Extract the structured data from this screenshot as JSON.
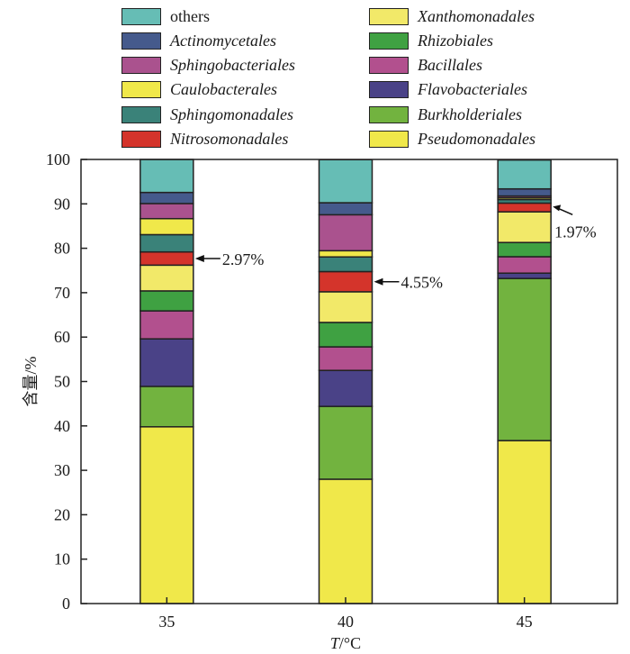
{
  "chart_data": {
    "type": "bar",
    "stacked": true,
    "title": "",
    "xlabel_italic": "T",
    "xlabel_rest": "/°C",
    "ylabel": "含量/%",
    "ylim": [
      0,
      100
    ],
    "yticks": [
      0,
      10,
      20,
      30,
      40,
      50,
      60,
      70,
      80,
      90,
      100
    ],
    "categories": [
      "35",
      "40",
      "45"
    ],
    "legend_position": "top",
    "series": [
      {
        "name": "Pseudomonadales",
        "color": "#F0E84A",
        "italic": true,
        "values": [
          39.8,
          28.0,
          36.7
        ]
      },
      {
        "name": "Burkholderiales",
        "color": "#72B33F",
        "italic": true,
        "values": [
          9.1,
          16.4,
          36.5
        ]
      },
      {
        "name": "Flavobacteriales",
        "color": "#4A4287",
        "italic": true,
        "values": [
          10.7,
          8.1,
          1.2
        ]
      },
      {
        "name": "Bacillales",
        "color": "#B2508E",
        "italic": true,
        "values": [
          6.3,
          5.3,
          3.7
        ]
      },
      {
        "name": "Rhizobiales",
        "color": "#3FA142",
        "italic": true,
        "values": [
          4.5,
          5.5,
          3.2
        ]
      },
      {
        "name": "Xanthomonadales",
        "color": "#F2E969",
        "italic": true,
        "values": [
          5.8,
          6.9,
          6.9
        ]
      },
      {
        "name": "Nitrosomonadales",
        "color": "#D4342B",
        "italic": true,
        "values": [
          2.97,
          4.55,
          1.97
        ]
      },
      {
        "name": "Sphingomonadales",
        "color": "#3A8279",
        "italic": true,
        "values": [
          3.9,
          3.3,
          0.8
        ]
      },
      {
        "name": "Caulobacterales",
        "color": "#F0E84A",
        "italic": true,
        "values": [
          3.6,
          1.4,
          0.4
        ]
      },
      {
        "name": "Sphingobacteriales",
        "color": "#AA528E",
        "italic": true,
        "values": [
          3.4,
          8.1,
          0.4
        ]
      },
      {
        "name": "Actinomycetales",
        "color": "#455A8C",
        "italic": true,
        "values": [
          2.5,
          2.7,
          1.6
        ]
      },
      {
        "name": "others",
        "color": "#66BDB5",
        "italic": false,
        "values": [
          7.5,
          9.7,
          6.5
        ]
      }
    ],
    "legend_order_left": [
      "others",
      "Actinomycetales",
      "Sphingobacteriales",
      "Caulobacterales",
      "Sphingomonadales",
      "Nitrosomonadales"
    ],
    "legend_order_right": [
      "Xanthomonadales",
      "Rhizobiales",
      "Bacillales",
      "Flavobacteriales",
      "Burkholderiales",
      "Pseudomonadales"
    ],
    "annotations": [
      {
        "text": "2.97%",
        "category": "35",
        "series": "Nitrosomonadales"
      },
      {
        "text": "4.55%",
        "category": "40",
        "series": "Nitrosomonadales"
      },
      {
        "text": "1.97%",
        "category": "45",
        "series": "Nitrosomonadales"
      }
    ]
  }
}
